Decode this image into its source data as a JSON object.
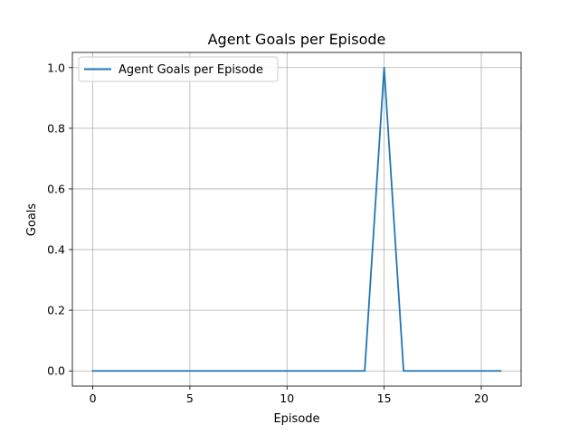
{
  "chart_data": {
    "type": "line",
    "title": "Agent Goals per Episode",
    "xlabel": "Episode",
    "ylabel": "Goals",
    "xlim": [
      -1.05,
      22.05
    ],
    "ylim": [
      -0.05,
      1.05
    ],
    "xticks": [
      0,
      5,
      10,
      15,
      20
    ],
    "xtick_labels": [
      "0",
      "5",
      "10",
      "15",
      "20"
    ],
    "yticks": [
      0.0,
      0.2,
      0.4,
      0.6,
      0.8,
      1.0
    ],
    "ytick_labels": [
      "0.0",
      "0.2",
      "0.4",
      "0.6",
      "0.8",
      "1.0"
    ],
    "grid": true,
    "legend_position": "upper-left",
    "series": [
      {
        "name": "Agent Goals per Episode",
        "color": "#1f77b4",
        "x": [
          0,
          1,
          2,
          3,
          4,
          5,
          6,
          7,
          8,
          9,
          10,
          11,
          12,
          13,
          14,
          15,
          16,
          17,
          18,
          19,
          20,
          21
        ],
        "y": [
          0,
          0,
          0,
          0,
          0,
          0,
          0,
          0,
          0,
          0,
          0,
          0,
          0,
          0,
          0,
          1,
          0,
          0,
          0,
          0,
          0,
          0
        ]
      }
    ]
  }
}
